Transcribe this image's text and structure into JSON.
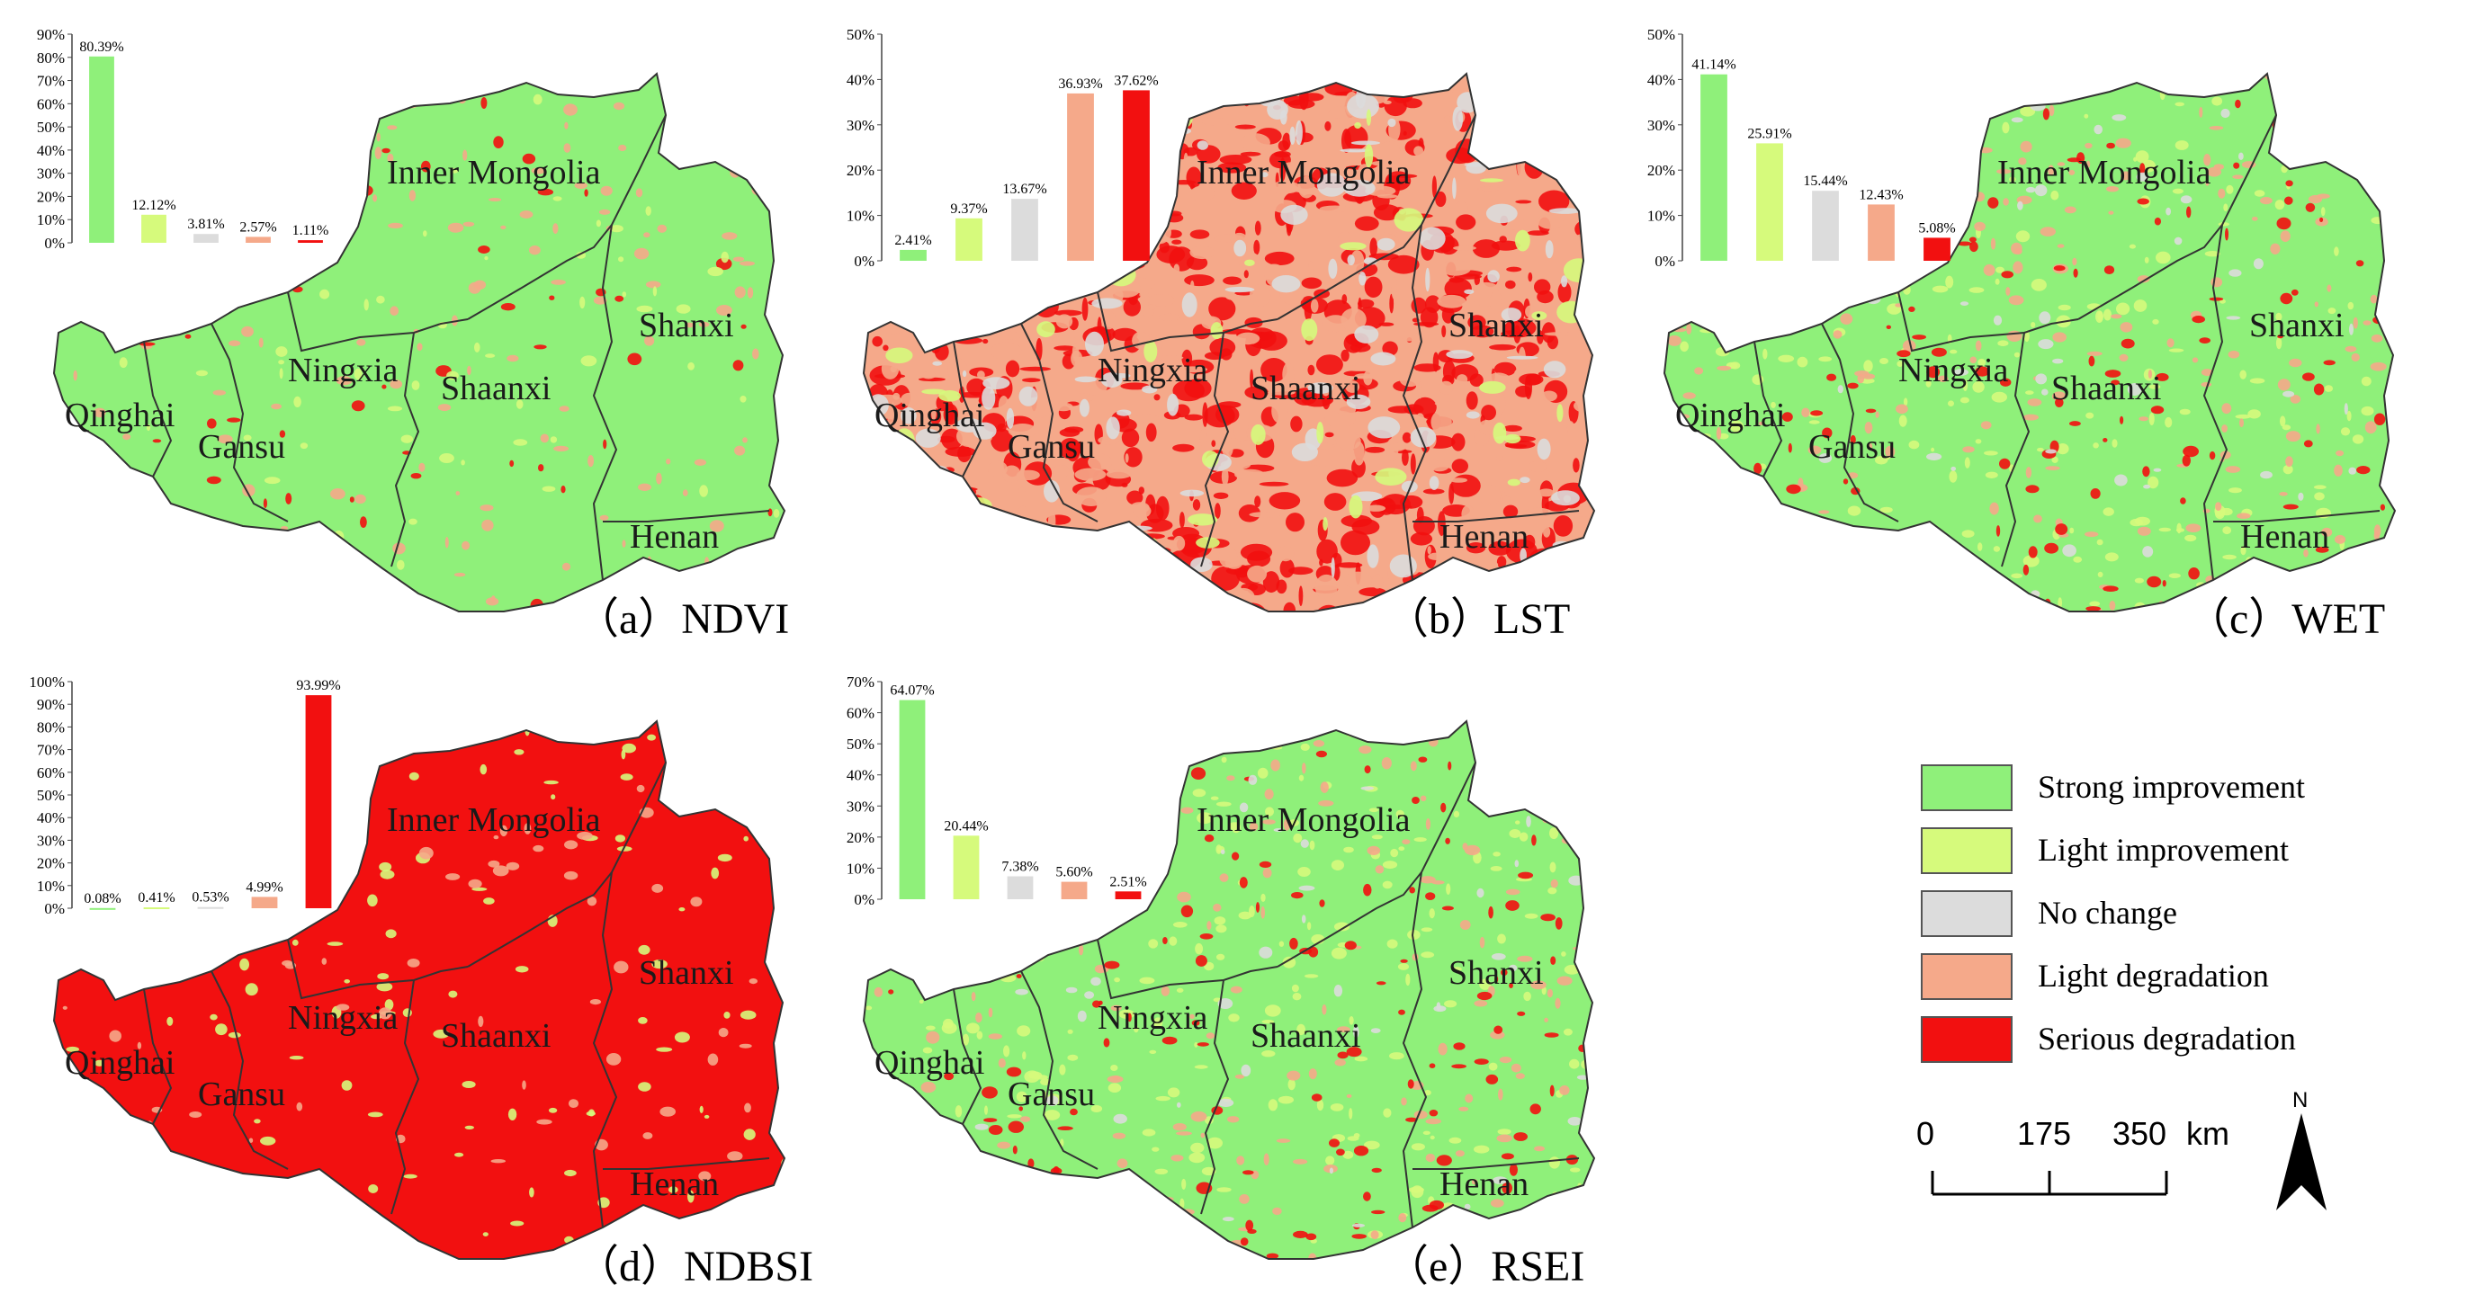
{
  "legend": [
    {
      "label": "Strong improvement",
      "color": "#8ff07a"
    },
    {
      "label": "Light improvement",
      "color": "#d6fa7c"
    },
    {
      "label": "No change",
      "color": "#dcdcdc"
    },
    {
      "label": "Light degradation",
      "color": "#f5a98a"
    },
    {
      "label": "Serious degradation",
      "color": "#f21010"
    }
  ],
  "provinces": {
    "inner_mongolia": "Inner Mongolia",
    "shanxi": "Shanxi",
    "ningxia": "Ningxia",
    "shaanxi": "Shaanxi",
    "qinghai": "Qinghai",
    "gansu": "Gansu",
    "henan": "Henan"
  },
  "scale": {
    "ticks": [
      "0",
      "175",
      "350"
    ],
    "unit": "km"
  },
  "north_label": "N",
  "chart_data": [
    {
      "type": "bar",
      "panel": "(a) NDVI",
      "categories": [
        "Strong improvement",
        "Light improvement",
        "No change",
        "Light degradation",
        "Serious degradation"
      ],
      "values": [
        80.39,
        12.12,
        3.81,
        2.57,
        1.11
      ],
      "value_labels": [
        "80.39%",
        "12.12%",
        "3.81%",
        "2.57%",
        "1.11%"
      ],
      "yticks": [
        "0%",
        "10%",
        "20%",
        "30%",
        "40%",
        "50%",
        "60%",
        "70%",
        "80%",
        "90%"
      ],
      "ylim": [
        0,
        90
      ],
      "dominant": "Strong improvement",
      "caption": "（a）NDVI"
    },
    {
      "type": "bar",
      "panel": "(b) LST",
      "categories": [
        "Strong improvement",
        "Light improvement",
        "No change",
        "Light degradation",
        "Serious degradation"
      ],
      "values": [
        2.41,
        9.37,
        13.67,
        36.93,
        37.62
      ],
      "value_labels": [
        "2.41%",
        "9.37%",
        "13.67%",
        "36.93%",
        "37.62%"
      ],
      "yticks": [
        "0%",
        "10%",
        "20%",
        "30%",
        "40%",
        "50%"
      ],
      "ylim": [
        0,
        50
      ],
      "dominant": "Serious degradation",
      "caption": "（b）LST"
    },
    {
      "type": "bar",
      "panel": "(c) WET",
      "categories": [
        "Strong improvement",
        "Light improvement",
        "No change",
        "Light degradation",
        "Serious degradation"
      ],
      "values": [
        41.14,
        25.91,
        15.44,
        12.43,
        5.08
      ],
      "value_labels": [
        "41.14%",
        "25.91%",
        "15.44%",
        "12.43%",
        "5.08%"
      ],
      "yticks": [
        "0%",
        "10%",
        "20%",
        "30%",
        "40%",
        "50%"
      ],
      "ylim": [
        0,
        50
      ],
      "dominant": "Strong improvement",
      "caption": "（c）WET"
    },
    {
      "type": "bar",
      "panel": "(d) NDBSI",
      "categories": [
        "Strong improvement",
        "Light improvement",
        "No change",
        "Light degradation",
        "Serious degradation"
      ],
      "values": [
        0.08,
        0.41,
        0.53,
        4.99,
        93.99
      ],
      "value_labels": [
        "0.08%",
        "0.41%",
        "0.53%",
        "4.99%",
        "93.99%"
      ],
      "yticks": [
        "0%",
        "10%",
        "20%",
        "30%",
        "40%",
        "50%",
        "60%",
        "70%",
        "80%",
        "90%",
        "100%"
      ],
      "ylim": [
        0,
        100
      ],
      "dominant": "Serious degradation",
      "caption": "（d）NDBSI"
    },
    {
      "type": "bar",
      "panel": "(e) RSEI",
      "categories": [
        "Strong improvement",
        "Light improvement",
        "No change",
        "Light degradation",
        "Serious degradation"
      ],
      "values": [
        64.07,
        20.44,
        7.38,
        5.6,
        2.51
      ],
      "value_labels": [
        "64.07%",
        "20.44%",
        "7.38%",
        "5.60%",
        "2.51%"
      ],
      "yticks": [
        "0%",
        "10%",
        "20%",
        "30%",
        "40%",
        "50%",
        "60%",
        "70%"
      ],
      "ylim": [
        0,
        70
      ],
      "dominant": "Strong improvement",
      "caption": "（e）RSEI"
    }
  ]
}
